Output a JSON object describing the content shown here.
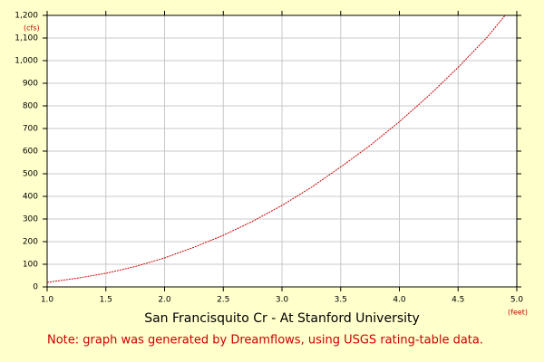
{
  "chart_data": {
    "type": "line",
    "title": "San Francisquito Cr - At Stanford University",
    "note": "Note: graph was generated by Dreamflows, using USGS rating-table data.",
    "y_unit": "(cfs)",
    "x_unit": "(feet)",
    "x": [
      1.0,
      1.25,
      1.5,
      1.75,
      2.0,
      2.25,
      2.5,
      2.75,
      3.0,
      3.25,
      3.5,
      3.75,
      4.0,
      4.25,
      4.5,
      4.75,
      4.9
    ],
    "series": [
      {
        "color": "#cc0000",
        "values": [
          20,
          38,
          60,
          90,
          128,
          175,
          228,
          290,
          360,
          440,
          530,
          625,
          730,
          845,
          970,
          1105,
          1200
        ]
      }
    ],
    "xlim": [
      1.0,
      5.0
    ],
    "xticks": [
      {
        "value": 1.0,
        "label": "1.0"
      },
      1.5,
      {
        "value": 2.0,
        "label": "2.0"
      },
      2.5,
      {
        "value": 3.0,
        "label": "3.0"
      },
      3.5,
      {
        "value": 4.0,
        "label": "4.0"
      },
      4.5,
      {
        "value": 5.0,
        "label": "5.0"
      }
    ],
    "ylim": [
      0,
      1200
    ],
    "yticks": [
      0,
      100,
      200,
      300,
      400,
      500,
      600,
      700,
      800,
      900,
      {
        "value": 1000,
        "label": "1,000"
      },
      {
        "value": 1100,
        "label": "1,100"
      },
      {
        "value": 1200,
        "label": "1,200"
      }
    ],
    "grid": true
  }
}
